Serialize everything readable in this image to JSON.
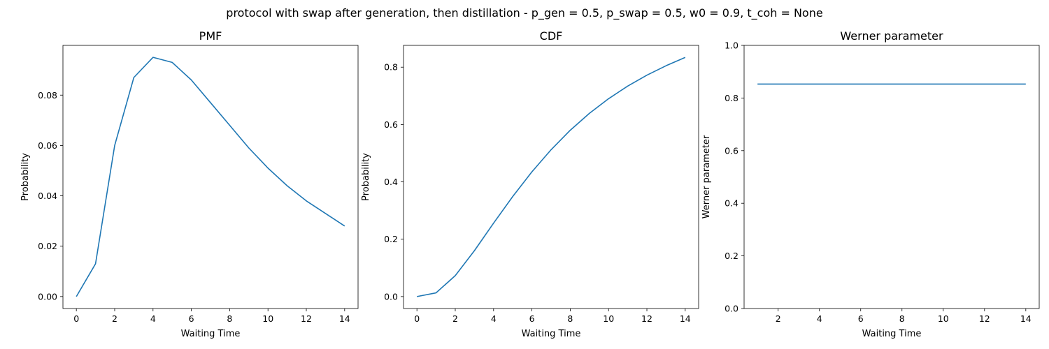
{
  "figure": {
    "suptitle": "protocol with swap after generation, then distillation - p_gen = 0.5, p_swap = 0.5, w0 = 0.9, t_coh = None"
  },
  "style": {
    "line_color": "#1f77b4"
  },
  "chart_data": [
    {
      "type": "line",
      "title": "PMF",
      "xlabel": "Waiting Time",
      "ylabel": "Probability",
      "xlim": [
        -0.7,
        14.7
      ],
      "ylim": [
        -0.00475,
        0.09975
      ],
      "xticks": [
        0,
        2,
        4,
        6,
        8,
        10,
        12,
        14
      ],
      "xtick_labels": [
        "0",
        "2",
        "4",
        "6",
        "8",
        "10",
        "12",
        "14"
      ],
      "yticks": [
        0,
        0.02,
        0.04,
        0.06,
        0.08
      ],
      "ytick_labels": [
        "0.00",
        "0.02",
        "0.04",
        "0.06",
        "0.08"
      ],
      "grid": false,
      "x": [
        0,
        1,
        2,
        3,
        4,
        5,
        6,
        7,
        8,
        9,
        10,
        11,
        12,
        13,
        14
      ],
      "series": [
        {
          "values": [
            0.0,
            0.013,
            0.06,
            0.087,
            0.095,
            0.093,
            0.086,
            0.077,
            0.068,
            0.059,
            0.051,
            0.044,
            0.038,
            0.033,
            0.028
          ]
        }
      ]
    },
    {
      "type": "line",
      "title": "CDF",
      "xlabel": "Waiting Time",
      "ylabel": "Probability",
      "xlim": [
        -0.7,
        14.7
      ],
      "ylim": [
        -0.0417,
        0.876
      ],
      "xticks": [
        0,
        2,
        4,
        6,
        8,
        10,
        12,
        14
      ],
      "xtick_labels": [
        "0",
        "2",
        "4",
        "6",
        "8",
        "10",
        "12",
        "14"
      ],
      "yticks": [
        0,
        0.2,
        0.4,
        0.6,
        0.8
      ],
      "ytick_labels": [
        "0.0",
        "0.2",
        "0.4",
        "0.6",
        "0.8"
      ],
      "grid": false,
      "x": [
        0,
        1,
        2,
        3,
        4,
        5,
        6,
        7,
        8,
        9,
        10,
        11,
        12,
        13,
        14
      ],
      "series": [
        {
          "values": [
            0.0,
            0.013,
            0.073,
            0.16,
            0.256,
            0.349,
            0.435,
            0.512,
            0.58,
            0.639,
            0.69,
            0.734,
            0.772,
            0.805,
            0.834
          ]
        }
      ]
    },
    {
      "type": "line",
      "title": "Werner parameter",
      "xlabel": "Waiting Time",
      "ylabel": "Werner parameter",
      "xlim": [
        0.35,
        14.65
      ],
      "ylim": [
        0,
        1
      ],
      "xticks": [
        2,
        4,
        6,
        8,
        10,
        12,
        14
      ],
      "xtick_labels": [
        "2",
        "4",
        "6",
        "8",
        "10",
        "12",
        "14"
      ],
      "yticks": [
        0,
        0.2,
        0.4,
        0.6,
        0.8,
        1.0
      ],
      "ytick_labels": [
        "0.0",
        "0.2",
        "0.4",
        "0.6",
        "0.8",
        "1.0"
      ],
      "grid": false,
      "x": [
        1,
        2,
        3,
        4,
        5,
        6,
        7,
        8,
        9,
        10,
        11,
        12,
        13,
        14
      ],
      "series": [
        {
          "values": [
            0.853,
            0.853,
            0.853,
            0.853,
            0.853,
            0.853,
            0.853,
            0.853,
            0.853,
            0.853,
            0.853,
            0.853,
            0.853,
            0.853
          ]
        }
      ]
    }
  ]
}
